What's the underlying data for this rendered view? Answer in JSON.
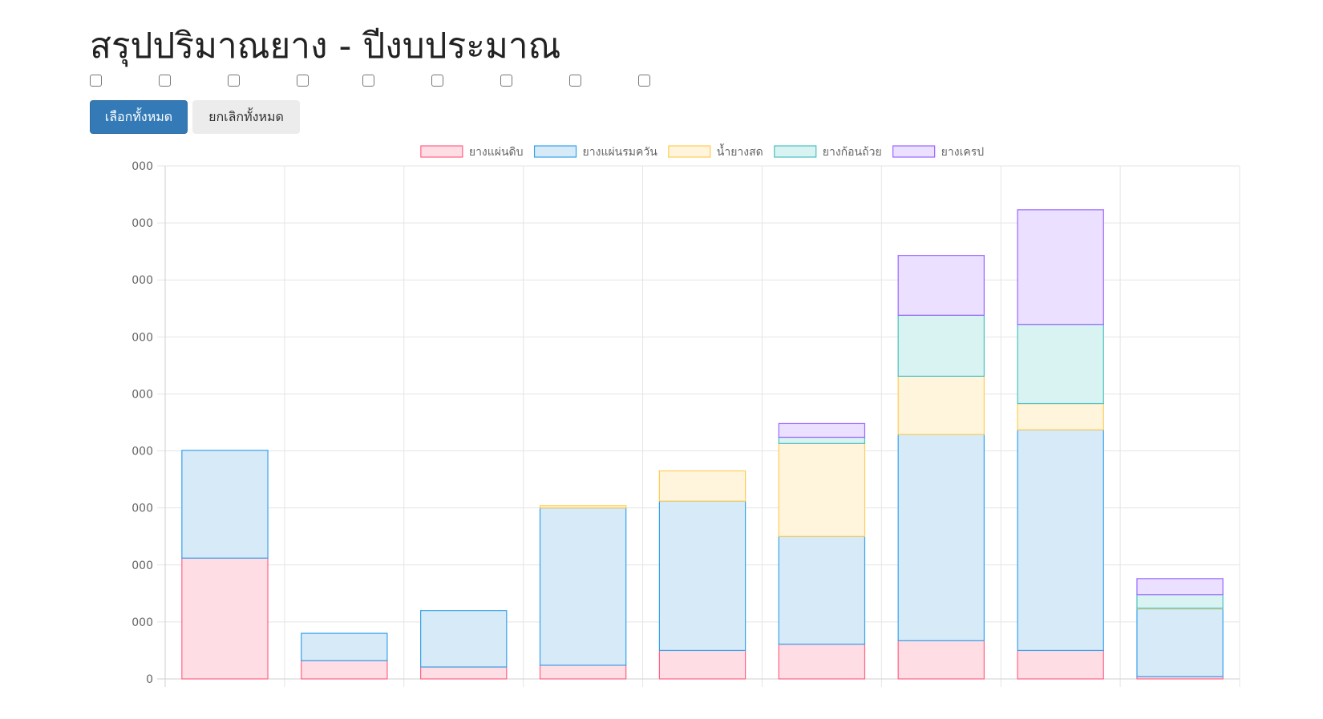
{
  "title": "สรุปปริมาณยาง - ปีงบประมาณ",
  "checkboxes": [
    {
      "checked": false
    },
    {
      "checked": false
    },
    {
      "checked": false
    },
    {
      "checked": false
    },
    {
      "checked": false
    },
    {
      "checked": false
    },
    {
      "checked": false
    },
    {
      "checked": false
    },
    {
      "checked": false
    }
  ],
  "buttons": {
    "select_all": "เลือกทั้งหมด",
    "deselect_all": "ยกเลิกทั้งหมด"
  },
  "chart_data": {
    "type": "bar",
    "stacked": true,
    "categories": [
      "",
      "",
      "",
      "",
      "",
      "",
      "",
      "",
      ""
    ],
    "y_tick_labels": [
      "0",
      "000",
      "000",
      "000",
      "000",
      "000",
      "000",
      "000",
      "000",
      "000"
    ],
    "ylim": [
      0,
      9
    ],
    "grid": true,
    "legend_position": "top",
    "series": [
      {
        "name": "ยางแผ่นดิบ",
        "border": "#ff6384",
        "fill": "#ffdde5",
        "values": [
          2.12,
          0.32,
          0.21,
          0.24,
          0.5,
          0.61,
          0.67,
          0.5,
          0.04
        ]
      },
      {
        "name": "ยางแผ่นรมควัน",
        "border": "#36a2eb",
        "fill": "#d6eaf8",
        "values": [
          1.89,
          0.48,
          0.99,
          2.76,
          2.62,
          1.89,
          3.62,
          3.87,
          1.19
        ]
      },
      {
        "name": "น้ำยางสด",
        "border": "#ffcd56",
        "fill": "#fff4dc",
        "values": [
          0.0,
          0.0,
          0.0,
          0.04,
          0.53,
          1.63,
          1.02,
          0.46,
          0.01
        ]
      },
      {
        "name": "ยางก้อนถ้วย",
        "border": "#4bc0c0",
        "fill": "#d9f2f2",
        "values": [
          0.0,
          0.0,
          0.0,
          0.0,
          0.0,
          0.11,
          1.07,
          1.39,
          0.24
        ]
      },
      {
        "name": "ยางเครป",
        "border": "#9966ff",
        "fill": "#ebe0ff",
        "values": [
          0.0,
          0.0,
          0.0,
          0.0,
          0.0,
          0.24,
          1.05,
          2.01,
          0.28
        ]
      }
    ]
  }
}
